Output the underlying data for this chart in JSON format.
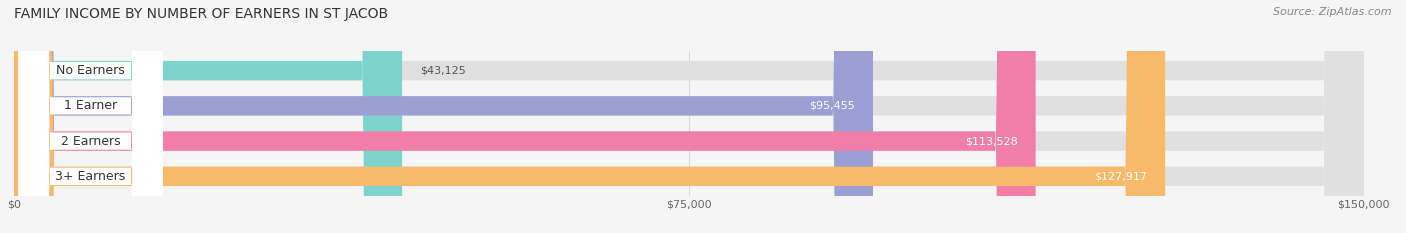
{
  "title": "FAMILY INCOME BY NUMBER OF EARNERS IN ST JACOB",
  "source": "Source: ZipAtlas.com",
  "categories": [
    "No Earners",
    "1 Earner",
    "2 Earners",
    "3+ Earners"
  ],
  "values": [
    43125,
    95455,
    113528,
    127917
  ],
  "bar_colors": [
    "#7DD4CE",
    "#9B9FD4",
    "#F07EA8",
    "#F8B96B"
  ],
  "bar_bg_color": "#E0E0E0",
  "max_value": 150000,
  "xtick_values": [
    0,
    75000,
    150000
  ],
  "xtick_labels": [
    "$0",
    "$75,000",
    "$150,000"
  ],
  "value_labels": [
    "$43,125",
    "$95,455",
    "$113,528",
    "$127,917"
  ],
  "figsize": [
    14.06,
    2.33
  ],
  "dpi": 100,
  "bar_height": 0.55,
  "background_color": "#F5F5F5",
  "title_fontsize": 10,
  "source_fontsize": 8,
  "label_fontsize": 9,
  "value_fontsize": 8,
  "tick_fontsize": 8
}
